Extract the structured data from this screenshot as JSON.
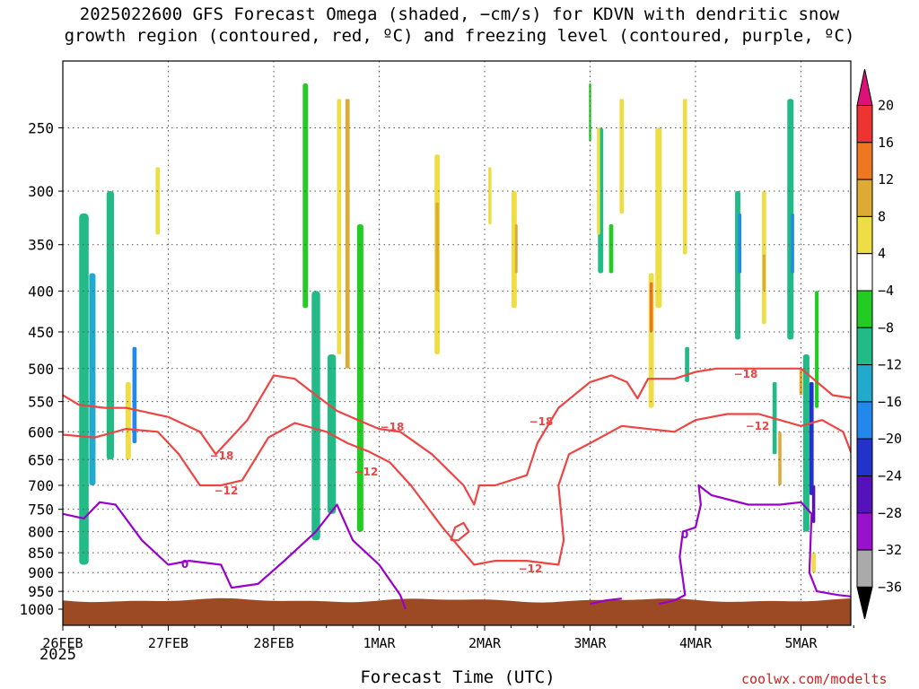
{
  "title_line1": "2025022600 GFS Forecast Omega (shaded, −cm/s) for KDVN with dendritic snow",
  "title_line2": "growth region (contoured, red, ºC) and freezing level (contoured, purple, ºC)",
  "xlabel": "Forecast Time (UTC)",
  "year_label": "2025",
  "credit": "coolwx.com/modelts",
  "colors": {
    "terrain": "#9b4a24",
    "dgz_contour": "#ee4444",
    "freezing_contour": "#9900cc",
    "grid": "#555555"
  },
  "chart_data": {
    "type": "heatmap",
    "x_tick_labels": [
      "26FEB",
      "27FEB",
      "28FEB",
      "1MAR",
      "2MAR",
      "3MAR",
      "4MAR",
      "5MAR"
    ],
    "y_tick_labels": [
      "250",
      "300",
      "350",
      "400",
      "450",
      "500",
      "550",
      "600",
      "650",
      "700",
      "750",
      "800",
      "850",
      "900",
      "950",
      "1000"
    ],
    "y_axis_scale": "log-pressure (hPa), reversed",
    "colorbar": {
      "labels": [
        "20",
        "16",
        "12",
        "8",
        "4",
        "−4",
        "−8",
        "−12",
        "−16",
        "−20",
        "−24",
        "−28",
        "−32",
        "−36"
      ],
      "colors": [
        "#dd1177",
        "#ee3333",
        "#ee7722",
        "#ddaa33",
        "#eedd44",
        "#ffffff",
        "#22cc22",
        "#22bb88",
        "#22aacc",
        "#2288ee",
        "#2233cc",
        "#5511bb",
        "#9911cc",
        "#aaaaaa",
        "#000000"
      ]
    },
    "contour_labels": [
      {
        "text": "−18",
        "color": "red"
      },
      {
        "text": "−12",
        "color": "red"
      },
      {
        "text": "−12",
        "color": "red"
      },
      {
        "text": "−18",
        "color": "red"
      },
      {
        "text": "−18",
        "color": "red"
      },
      {
        "text": "−12",
        "color": "red"
      },
      {
        "text": "−18",
        "color": "red"
      },
      {
        "text": "−12",
        "color": "red"
      },
      {
        "text": "0",
        "color": "purple"
      },
      {
        "text": "0",
        "color": "purple"
      }
    ],
    "shaded_patches": [
      {
        "x": 0.2,
        "p": [
          320,
          880
        ],
        "w": 0.09,
        "value": -8
      },
      {
        "x": 0.28,
        "p": [
          380,
          700
        ],
        "w": 0.06,
        "value": -14
      },
      {
        "x": 0.45,
        "p": [
          300,
          650
        ],
        "w": 0.07,
        "value": -8
      },
      {
        "x": 0.68,
        "p": [
          470,
          620
        ],
        "w": 0.04,
        "value": -16
      },
      {
        "x": 0.62,
        "p": [
          520,
          650
        ],
        "w": 0.05,
        "value": 6
      },
      {
        "x": 0.9,
        "p": [
          280,
          340
        ],
        "w": 0.04,
        "value": 5
      },
      {
        "x": 2.3,
        "p": [
          220,
          420
        ],
        "w": 0.05,
        "value": -6
      },
      {
        "x": 2.4,
        "p": [
          400,
          820
        ],
        "w": 0.08,
        "value": -8
      },
      {
        "x": 2.55,
        "p": [
          480,
          760
        ],
        "w": 0.08,
        "value": -9
      },
      {
        "x": 2.62,
        "p": [
          230,
          480
        ],
        "w": 0.04,
        "value": 6
      },
      {
        "x": 2.7,
        "p": [
          230,
          500
        ],
        "w": 0.04,
        "value": 10
      },
      {
        "x": 2.82,
        "p": [
          330,
          800
        ],
        "w": 0.06,
        "value": -7
      },
      {
        "x": 3.55,
        "p": [
          270,
          480
        ],
        "w": 0.05,
        "value": 6
      },
      {
        "x": 3.55,
        "p": [
          310,
          400
        ],
        "w": 0.03,
        "value": 11
      },
      {
        "x": 4.28,
        "p": [
          300,
          420
        ],
        "w": 0.05,
        "value": 6
      },
      {
        "x": 4.3,
        "p": [
          330,
          380
        ],
        "w": 0.025,
        "value": 11
      },
      {
        "x": 4.05,
        "p": [
          280,
          330
        ],
        "w": 0.03,
        "value": 5
      },
      {
        "x": 5.0,
        "p": [
          220,
          260
        ],
        "w": 0.02,
        "value": -6
      },
      {
        "x": 5.1,
        "p": [
          250,
          380
        ],
        "w": 0.05,
        "value": -8
      },
      {
        "x": 5.2,
        "p": [
          330,
          380
        ],
        "w": 0.04,
        "value": -7
      },
      {
        "x": 5.08,
        "p": [
          250,
          340
        ],
        "w": 0.03,
        "value": 5
      },
      {
        "x": 5.3,
        "p": [
          230,
          320
        ],
        "w": 0.04,
        "value": 5
      },
      {
        "x": 5.58,
        "p": [
          380,
          560
        ],
        "w": 0.05,
        "value": 7
      },
      {
        "x": 5.58,
        "p": [
          390,
          450
        ],
        "w": 0.03,
        "value": 13
      },
      {
        "x": 5.65,
        "p": [
          250,
          420
        ],
        "w": 0.06,
        "value": 6
      },
      {
        "x": 5.9,
        "p": [
          230,
          360
        ],
        "w": 0.04,
        "value": 5
      },
      {
        "x": 5.92,
        "p": [
          470,
          520
        ],
        "w": 0.04,
        "value": -8
      },
      {
        "x": 6.4,
        "p": [
          300,
          460
        ],
        "w": 0.05,
        "value": -8
      },
      {
        "x": 6.42,
        "p": [
          320,
          380
        ],
        "w": 0.03,
        "value": -16
      },
      {
        "x": 6.65,
        "p": [
          300,
          440
        ],
        "w": 0.04,
        "value": 7
      },
      {
        "x": 6.65,
        "p": [
          360,
          400
        ],
        "w": 0.025,
        "value": 11
      },
      {
        "x": 6.9,
        "p": [
          230,
          460
        ],
        "w": 0.06,
        "value": -9
      },
      {
        "x": 6.92,
        "p": [
          320,
          380
        ],
        "w": 0.03,
        "value": -16
      },
      {
        "x": 6.75,
        "p": [
          520,
          640
        ],
        "w": 0.04,
        "value": -8
      },
      {
        "x": 6.8,
        "p": [
          600,
          700
        ],
        "w": 0.03,
        "value": 10
      },
      {
        "x": 7.05,
        "p": [
          480,
          800
        ],
        "w": 0.06,
        "value": -10
      },
      {
        "x": 7.1,
        "p": [
          520,
          720
        ],
        "w": 0.04,
        "value": -20
      },
      {
        "x": 7.12,
        "p": [
          700,
          780
        ],
        "w": 0.03,
        "value": -26
      },
      {
        "x": 7.0,
        "p": [
          500,
          540
        ],
        "w": 0.03,
        "value": 10
      },
      {
        "x": 7.15,
        "p": [
          400,
          560
        ],
        "w": 0.035,
        "value": -7
      },
      {
        "x": 7.12,
        "p": [
          850,
          900
        ],
        "w": 0.04,
        "value": 6
      }
    ],
    "dgz_contours": [
      {
        "label": "−18",
        "points": [
          [
            0,
            540
          ],
          [
            0.15,
            555
          ],
          [
            0.4,
            560
          ],
          [
            0.6,
            560
          ],
          [
            1.0,
            575
          ],
          [
            1.3,
            600
          ],
          [
            1.45,
            640
          ],
          [
            1.75,
            580
          ],
          [
            2.0,
            510
          ],
          [
            2.2,
            515
          ],
          [
            2.4,
            540
          ],
          [
            2.6,
            565
          ],
          [
            2.8,
            580
          ],
          [
            3.0,
            595
          ],
          [
            3.2,
            600
          ],
          [
            3.5,
            640
          ],
          [
            3.8,
            700
          ],
          [
            3.9,
            740
          ],
          [
            3.95,
            700
          ],
          [
            4.1,
            700
          ],
          [
            4.4,
            680
          ],
          [
            4.5,
            620
          ],
          [
            4.7,
            560
          ],
          [
            5.0,
            520
          ],
          [
            5.2,
            510
          ],
          [
            5.35,
            520
          ],
          [
            5.45,
            545
          ],
          [
            5.55,
            515
          ],
          [
            5.8,
            515
          ],
          [
            6.0,
            505
          ],
          [
            6.2,
            500
          ],
          [
            6.5,
            500
          ],
          [
            7.0,
            500
          ],
          [
            7.3,
            540
          ],
          [
            7.5,
            545
          ]
        ]
      },
      {
        "label": "−12",
        "points": [
          [
            0,
            605
          ],
          [
            0.3,
            610
          ],
          [
            0.6,
            595
          ],
          [
            0.9,
            600
          ],
          [
            1.1,
            640
          ],
          [
            1.3,
            700
          ],
          [
            1.5,
            700
          ],
          [
            1.7,
            690
          ],
          [
            1.95,
            610
          ],
          [
            2.2,
            585
          ],
          [
            2.5,
            600
          ],
          [
            2.7,
            620
          ],
          [
            2.9,
            635
          ],
          [
            3.1,
            655
          ],
          [
            3.3,
            700
          ],
          [
            3.6,
            790
          ],
          [
            3.9,
            880
          ],
          [
            4.1,
            870
          ],
          [
            4.4,
            870
          ],
          [
            4.7,
            880
          ],
          [
            4.75,
            820
          ],
          [
            4.7,
            700
          ],
          [
            4.8,
            640
          ],
          [
            5.0,
            620
          ],
          [
            5.3,
            590
          ],
          [
            5.8,
            600
          ],
          [
            6.0,
            580
          ],
          [
            6.3,
            570
          ],
          [
            6.6,
            570
          ],
          [
            6.8,
            580
          ],
          [
            7.0,
            590
          ],
          [
            7.2,
            580
          ],
          [
            7.4,
            600
          ],
          [
            7.5,
            650
          ]
        ]
      },
      {
        "label": "−12",
        "points": [
          [
            3.68,
            820
          ],
          [
            3.72,
            790
          ],
          [
            3.8,
            780
          ],
          [
            3.85,
            800
          ],
          [
            3.75,
            820
          ],
          [
            3.68,
            820
          ]
        ]
      }
    ],
    "freezing_contours": [
      {
        "label": "0",
        "points": [
          [
            0,
            760
          ],
          [
            0.2,
            770
          ],
          [
            0.35,
            735
          ],
          [
            0.5,
            740
          ],
          [
            0.75,
            820
          ],
          [
            1.0,
            880
          ],
          [
            1.2,
            870
          ],
          [
            1.5,
            880
          ],
          [
            1.6,
            940
          ],
          [
            1.85,
            930
          ],
          [
            2.1,
            870
          ],
          [
            2.4,
            800
          ],
          [
            2.6,
            740
          ],
          [
            2.75,
            820
          ],
          [
            3.0,
            880
          ],
          [
            3.2,
            960
          ],
          [
            3.25,
            1000
          ]
        ]
      },
      {
        "label": "0",
        "points": [
          [
            5.0,
            985
          ],
          [
            5.15,
            975
          ],
          [
            5.3,
            970
          ]
        ]
      },
      {
        "label": "0",
        "points": [
          [
            5.65,
            985
          ],
          [
            5.8,
            975
          ],
          [
            5.9,
            960
          ],
          [
            5.85,
            860
          ],
          [
            5.88,
            800
          ],
          [
            6.0,
            790
          ],
          [
            6.05,
            740
          ],
          [
            6.03,
            700
          ],
          [
            6.15,
            720
          ],
          [
            6.5,
            740
          ],
          [
            6.8,
            740
          ],
          [
            7.0,
            735
          ],
          [
            7.1,
            760
          ],
          [
            7.08,
            900
          ],
          [
            7.15,
            950
          ],
          [
            7.35,
            960
          ],
          [
            7.5,
            965
          ]
        ]
      }
    ]
  }
}
